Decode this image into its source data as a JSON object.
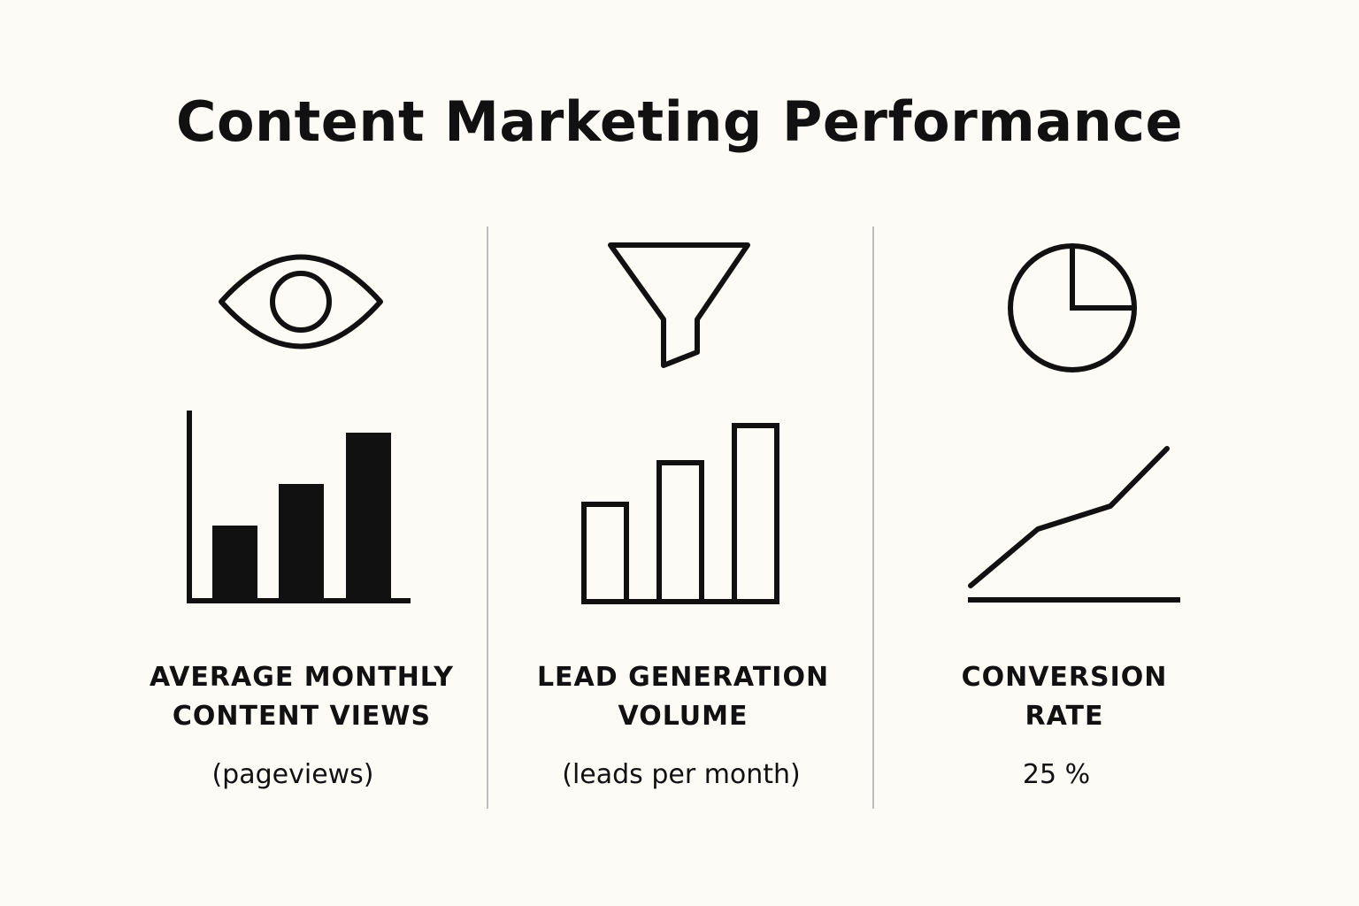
{
  "page": {
    "background": "#fcfbf6",
    "ink": "#111111",
    "divider_color": "#bcbcbc",
    "title": "Content Marketing Performance"
  },
  "columns": [
    {
      "icon": "eye-icon",
      "chart_icon": "filled-bar-chart-icon",
      "label_lines": [
        "AVERAGE MONTHLY",
        "CONTENT VIEWS"
      ],
      "sub_label": "(pageviews)"
    },
    {
      "icon": "funnel-icon",
      "chart_icon": "outlined-bar-chart-icon",
      "label_lines": [
        "LEAD GENERATION",
        "VOLUME"
      ],
      "sub_label": "(leads per month)"
    },
    {
      "icon": "pie-chart-icon",
      "chart_icon": "line-chart-icon",
      "label_lines": [
        "CONVERSION",
        "RATE"
      ],
      "sub_label": "25 %"
    }
  ]
}
